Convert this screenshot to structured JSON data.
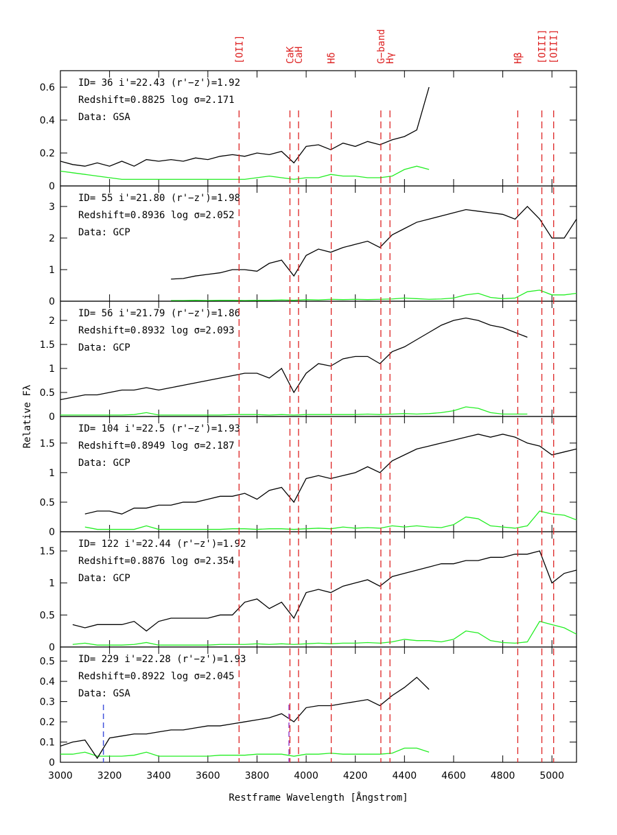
{
  "chart_data": [
    {
      "type": "line",
      "annotations": [
        "ID= 36  i'=22.43  (r'−z')=1.92",
        "Redshift=0.8825   log σ=2.171",
        "Data: GSA"
      ],
      "reference_lines": [
        {
          "x": 3727,
          "label": "[OII]"
        },
        {
          "x": 3934,
          "label": "CaK"
        },
        {
          "x": 3969,
          "label": "CaH"
        },
        {
          "x": 4102,
          "label": "Hδ"
        },
        {
          "x": 4304,
          "label": "G−band"
        },
        {
          "x": 4341,
          "label": "Hγ"
        },
        {
          "x": 4861,
          "label": "Hβ"
        },
        {
          "x": 4959,
          "label": "[OIII]"
        },
        {
          "x": 5007,
          "label": "[OIII]"
        }
      ],
      "xlim": [
        3000,
        5100
      ],
      "xticks": [
        3000,
        3200,
        3400,
        3600,
        3800,
        4000,
        4200,
        4400,
        4600,
        4800,
        5000
      ],
      "ylim": [
        0,
        0.7
      ],
      "yticks": [
        0,
        0.2,
        0.4,
        0.6
      ],
      "x": [
        3000,
        3050,
        3100,
        3150,
        3200,
        3250,
        3300,
        3350,
        3400,
        3450,
        3500,
        3550,
        3600,
        3650,
        3700,
        3750,
        3800,
        3850,
        3900,
        3950,
        4000,
        4050,
        4100,
        4150,
        4200,
        4250,
        4300,
        4350,
        4400,
        4450,
        4500
      ],
      "series": [
        {
          "color": "#000000",
          "values": [
            0.15,
            0.13,
            0.12,
            0.14,
            0.12,
            0.15,
            0.12,
            0.16,
            0.15,
            0.16,
            0.15,
            0.17,
            0.16,
            0.18,
            0.19,
            0.18,
            0.2,
            0.19,
            0.21,
            0.14,
            0.24,
            0.25,
            0.22,
            0.26,
            0.24,
            0.27,
            0.25,
            0.28,
            0.3,
            0.34,
            0.6
          ]
        },
        {
          "color": "#22ee22",
          "values": [
            0.09,
            0.08,
            0.07,
            0.06,
            0.05,
            0.04,
            0.04,
            0.04,
            0.04,
            0.04,
            0.04,
            0.04,
            0.04,
            0.04,
            0.04,
            0.04,
            0.05,
            0.06,
            0.05,
            0.04,
            0.05,
            0.05,
            0.07,
            0.06,
            0.06,
            0.05,
            0.05,
            0.06,
            0.1,
            0.12,
            0.1
          ]
        }
      ]
    },
    {
      "type": "line",
      "annotations": [
        "ID= 55  i'=21.80  (r'−z')=1.98",
        "Redshift=0.8936   log σ=2.052",
        "Data: GCP"
      ],
      "xlim": [
        3000,
        5100
      ],
      "xticks": [
        3000,
        3200,
        3400,
        3600,
        3800,
        4000,
        4200,
        4400,
        4600,
        4800,
        5000
      ],
      "ylim": [
        0,
        3.65
      ],
      "yticks": [
        0,
        1,
        2,
        3
      ],
      "x": [
        3450,
        3500,
        3550,
        3600,
        3650,
        3700,
        3750,
        3800,
        3850,
        3900,
        3950,
        4000,
        4050,
        4100,
        4150,
        4200,
        4250,
        4300,
        4350,
        4400,
        4450,
        4500,
        4550,
        4600,
        4650,
        4700,
        4750,
        4800,
        4850,
        4900,
        4950,
        5000,
        5050,
        5100
      ],
      "series": [
        {
          "color": "#000000",
          "values": [
            0.7,
            0.72,
            0.8,
            0.85,
            0.9,
            1.0,
            1.0,
            0.95,
            1.2,
            1.3,
            0.8,
            1.45,
            1.65,
            1.55,
            1.7,
            1.8,
            1.9,
            1.7,
            2.1,
            2.3,
            2.5,
            2.6,
            2.7,
            2.8,
            2.9,
            2.85,
            2.8,
            2.75,
            2.6,
            3.0,
            2.6,
            2.0,
            2.0,
            2.6
          ]
        },
        {
          "color": "#22ee22",
          "values": [
            0.02,
            0.02,
            0.03,
            0.02,
            0.03,
            0.03,
            0.02,
            0.03,
            0.03,
            0.04,
            0.03,
            0.05,
            0.04,
            0.06,
            0.05,
            0.06,
            0.05,
            0.06,
            0.07,
            0.1,
            0.08,
            0.06,
            0.07,
            0.1,
            0.2,
            0.25,
            0.12,
            0.08,
            0.1,
            0.3,
            0.35,
            0.2,
            0.2,
            0.25
          ]
        }
      ]
    },
    {
      "type": "line",
      "annotations": [
        "ID= 56  i'=21.79  (r'−z')=1.86",
        "Redshift=0.8932   log σ=2.093",
        "Data: GCP"
      ],
      "ylabel": "Relative Fλ",
      "xlim": [
        3000,
        5100
      ],
      "xticks": [
        3000,
        3200,
        3400,
        3600,
        3800,
        4000,
        4200,
        4400,
        4600,
        4800,
        5000
      ],
      "ylim": [
        0,
        2.4
      ],
      "yticks": [
        0,
        0.5,
        1,
        1.5,
        2
      ],
      "x": [
        3000,
        3050,
        3100,
        3150,
        3200,
        3250,
        3300,
        3350,
        3400,
        3450,
        3500,
        3550,
        3600,
        3650,
        3700,
        3750,
        3800,
        3850,
        3900,
        3950,
        4000,
        4050,
        4100,
        4150,
        4200,
        4250,
        4300,
        4350,
        4400,
        4450,
        4500,
        4550,
        4600,
        4650,
        4700,
        4750,
        4800,
        4850,
        4900
      ],
      "series": [
        {
          "color": "#000000",
          "values": [
            0.35,
            0.4,
            0.45,
            0.45,
            0.5,
            0.55,
            0.55,
            0.6,
            0.55,
            0.6,
            0.65,
            0.7,
            0.75,
            0.8,
            0.85,
            0.9,
            0.9,
            0.8,
            1.0,
            0.5,
            0.9,
            1.1,
            1.05,
            1.2,
            1.25,
            1.25,
            1.1,
            1.35,
            1.45,
            1.6,
            1.75,
            1.9,
            2.0,
            2.05,
            2.0,
            1.9,
            1.85,
            1.75,
            1.65
          ]
        },
        {
          "color": "#22ee22",
          "values": [
            0.03,
            0.03,
            0.03,
            0.03,
            0.03,
            0.03,
            0.04,
            0.08,
            0.03,
            0.03,
            0.03,
            0.03,
            0.03,
            0.03,
            0.04,
            0.04,
            0.04,
            0.03,
            0.04,
            0.03,
            0.04,
            0.04,
            0.04,
            0.04,
            0.04,
            0.05,
            0.04,
            0.05,
            0.06,
            0.05,
            0.06,
            0.08,
            0.12,
            0.2,
            0.17,
            0.08,
            0.05,
            0.05,
            0.05
          ]
        }
      ]
    },
    {
      "type": "line",
      "annotations": [
        "ID= 104  i'=22.5  (r'−z')=1.93",
        "Redshift=0.8949   log σ=2.187",
        "Data: GCP"
      ],
      "xlim": [
        3000,
        5100
      ],
      "xticks": [
        3000,
        3200,
        3400,
        3600,
        3800,
        4000,
        4200,
        4400,
        4600,
        4800,
        5000
      ],
      "ylim": [
        0,
        1.95
      ],
      "yticks": [
        0,
        0.5,
        1,
        1.5
      ],
      "x": [
        3100,
        3150,
        3200,
        3250,
        3300,
        3350,
        3400,
        3450,
        3500,
        3550,
        3600,
        3650,
        3700,
        3750,
        3800,
        3850,
        3900,
        3950,
        4000,
        4050,
        4100,
        4150,
        4200,
        4250,
        4300,
        4350,
        4400,
        4450,
        4500,
        4550,
        4600,
        4650,
        4700,
        4750,
        4800,
        4850,
        4900,
        4950,
        5000,
        5050,
        5100
      ],
      "series": [
        {
          "color": "#000000",
          "values": [
            0.3,
            0.35,
            0.35,
            0.3,
            0.4,
            0.4,
            0.45,
            0.45,
            0.5,
            0.5,
            0.55,
            0.6,
            0.6,
            0.65,
            0.55,
            0.7,
            0.75,
            0.5,
            0.9,
            0.95,
            0.9,
            0.95,
            1.0,
            1.1,
            1.0,
            1.2,
            1.3,
            1.4,
            1.45,
            1.5,
            1.55,
            1.6,
            1.65,
            1.6,
            1.65,
            1.6,
            1.5,
            1.45,
            1.3,
            1.35,
            1.4
          ]
        },
        {
          "color": "#22ee22",
          "values": [
            0.08,
            0.04,
            0.04,
            0.04,
            0.04,
            0.1,
            0.04,
            0.04,
            0.04,
            0.04,
            0.04,
            0.04,
            0.05,
            0.05,
            0.04,
            0.05,
            0.05,
            0.04,
            0.05,
            0.06,
            0.05,
            0.08,
            0.06,
            0.07,
            0.06,
            0.1,
            0.08,
            0.1,
            0.08,
            0.07,
            0.12,
            0.25,
            0.22,
            0.1,
            0.08,
            0.06,
            0.1,
            0.35,
            0.3,
            0.28,
            0.2
          ]
        }
      ]
    },
    {
      "type": "line",
      "annotations": [
        "ID= 122  i'=22.44  (r'−z')=1.92",
        "Redshift=0.8876   log σ=2.354",
        "Data: GCP"
      ],
      "xlim": [
        3000,
        5100
      ],
      "xticks": [
        3000,
        3200,
        3400,
        3600,
        3800,
        4000,
        4200,
        4400,
        4600,
        4800,
        5000
      ],
      "ylim": [
        0,
        1.8
      ],
      "yticks": [
        0,
        0.5,
        1,
        1.5
      ],
      "x": [
        3050,
        3100,
        3150,
        3200,
        3250,
        3300,
        3350,
        3400,
        3450,
        3500,
        3550,
        3600,
        3650,
        3700,
        3750,
        3800,
        3850,
        3900,
        3950,
        4000,
        4050,
        4100,
        4150,
        4200,
        4250,
        4300,
        4350,
        4400,
        4450,
        4500,
        4550,
        4600,
        4650,
        4700,
        4750,
        4800,
        4850,
        4900,
        4950,
        5000,
        5050,
        5100
      ],
      "series": [
        {
          "color": "#000000",
          "values": [
            0.35,
            0.3,
            0.35,
            0.35,
            0.35,
            0.4,
            0.25,
            0.4,
            0.45,
            0.45,
            0.45,
            0.45,
            0.5,
            0.5,
            0.7,
            0.75,
            0.6,
            0.7,
            0.45,
            0.85,
            0.9,
            0.85,
            0.95,
            1.0,
            1.05,
            0.95,
            1.1,
            1.15,
            1.2,
            1.25,
            1.3,
            1.3,
            1.35,
            1.35,
            1.4,
            1.4,
            1.45,
            1.45,
            1.5,
            1.0,
            1.15,
            1.2
          ]
        },
        {
          "color": "#22ee22",
          "values": [
            0.04,
            0.06,
            0.03,
            0.03,
            0.03,
            0.04,
            0.07,
            0.03,
            0.03,
            0.03,
            0.03,
            0.03,
            0.04,
            0.04,
            0.04,
            0.05,
            0.04,
            0.05,
            0.04,
            0.05,
            0.06,
            0.05,
            0.06,
            0.06,
            0.07,
            0.06,
            0.08,
            0.12,
            0.1,
            0.1,
            0.08,
            0.12,
            0.25,
            0.22,
            0.1,
            0.07,
            0.06,
            0.08,
            0.4,
            0.35,
            0.3,
            0.2
          ]
        }
      ]
    },
    {
      "type": "line",
      "annotations": [
        "ID= 229  i'=22.28  (r'−z')=1.93",
        "Redshift=0.8922   log σ=2.045",
        "Data: GSA"
      ],
      "xlabel": "Restframe Wavelength [Ångstrom]",
      "marker_lines": [
        {
          "x": 3175,
          "color": "#4455dd"
        },
        {
          "x": 3930,
          "color": "#9944cc"
        }
      ],
      "xlim": [
        3000,
        5100
      ],
      "xticks": [
        3000,
        3200,
        3400,
        3600,
        3800,
        4000,
        4200,
        4400,
        4600,
        4800,
        5000
      ],
      "ylim": [
        0,
        0.57
      ],
      "yticks": [
        0,
        0.1,
        0.2,
        0.3,
        0.4,
        0.5
      ],
      "x": [
        3000,
        3050,
        3100,
        3150,
        3200,
        3250,
        3300,
        3350,
        3400,
        3450,
        3500,
        3550,
        3600,
        3650,
        3700,
        3750,
        3800,
        3850,
        3900,
        3950,
        4000,
        4050,
        4100,
        4150,
        4200,
        4250,
        4300,
        4350,
        4400,
        4450,
        4500
      ],
      "series": [
        {
          "color": "#000000",
          "values": [
            0.08,
            0.1,
            0.11,
            0.02,
            0.12,
            0.13,
            0.14,
            0.14,
            0.15,
            0.16,
            0.16,
            0.17,
            0.18,
            0.18,
            0.19,
            0.2,
            0.21,
            0.22,
            0.24,
            0.2,
            0.27,
            0.28,
            0.28,
            0.29,
            0.3,
            0.31,
            0.28,
            0.33,
            0.37,
            0.42,
            0.36
          ]
        },
        {
          "color": "#22ee22",
          "values": [
            0.04,
            0.04,
            0.05,
            0.03,
            0.03,
            0.03,
            0.035,
            0.05,
            0.03,
            0.03,
            0.03,
            0.03,
            0.03,
            0.035,
            0.035,
            0.035,
            0.04,
            0.04,
            0.04,
            0.03,
            0.04,
            0.04,
            0.045,
            0.04,
            0.04,
            0.04,
            0.04,
            0.045,
            0.07,
            0.07,
            0.05
          ]
        }
      ]
    }
  ]
}
